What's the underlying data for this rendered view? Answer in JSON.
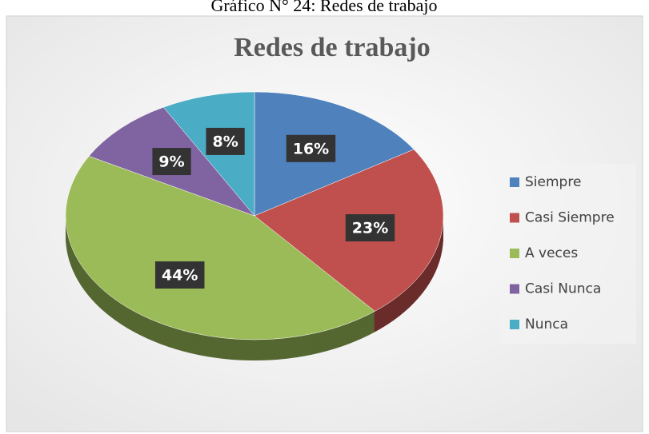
{
  "caption": "Gráfico N° 24: Redes de trabajo",
  "chart_data": {
    "type": "pie",
    "title": "Redes de trabajo",
    "categories": [
      "Siempre",
      "Casi Siempre",
      "A veces",
      "Casi Nunca",
      "Nunca"
    ],
    "values": [
      16,
      23,
      44,
      9,
      8
    ],
    "value_labels": [
      "16%",
      "23%",
      "44%",
      "9%",
      "8%"
    ],
    "colors": [
      "#4f81bd",
      "#c0504d",
      "#9bbb59",
      "#8064a2",
      "#4bacc6"
    ],
    "legend": "right"
  }
}
